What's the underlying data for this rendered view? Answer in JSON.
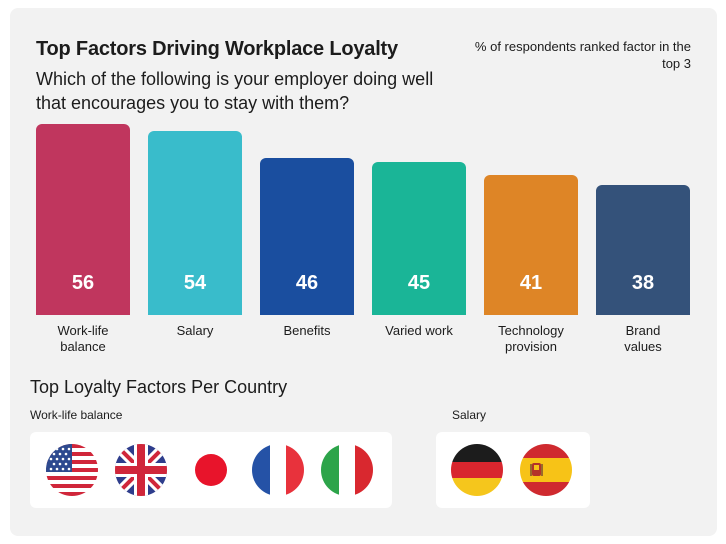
{
  "header": {
    "title": "Top Factors Driving Workplace Loyalty",
    "subtitle": "Which of the following is your employer doing well that encourages you to stay with them?",
    "note": "% of respondents ranked factor in the top 3"
  },
  "chart_data": {
    "type": "bar",
    "title": "Top Factors Driving Workplace Loyalty",
    "subtitle": "Which of the following is your employer doing well that encourages you to stay with them?",
    "ylabel": "",
    "xlabel": "",
    "ylim": [
      0,
      56
    ],
    "grid": false,
    "categories": [
      "Work-life\nbalance",
      "Salary",
      "Benefits",
      "Varied work",
      "Technology\nprovision",
      "Brand\nvalues"
    ],
    "values": [
      56,
      54,
      46,
      45,
      41,
      38
    ],
    "colors": [
      "#c0365e",
      "#39bccb",
      "#1a4e9f",
      "#1ab597",
      "#de8526",
      "#34527a"
    ]
  },
  "country_section": {
    "title": "Top Loyalty Factors Per Country",
    "groups": [
      {
        "label": "Work-life balance",
        "flags": [
          "usa-flag-icon",
          "uk-flag-icon",
          "japan-flag-icon",
          "france-flag-icon",
          "italy-flag-icon"
        ]
      },
      {
        "label": "Salary",
        "flags": [
          "germany-flag-icon",
          "spain-flag-icon"
        ]
      }
    ]
  }
}
